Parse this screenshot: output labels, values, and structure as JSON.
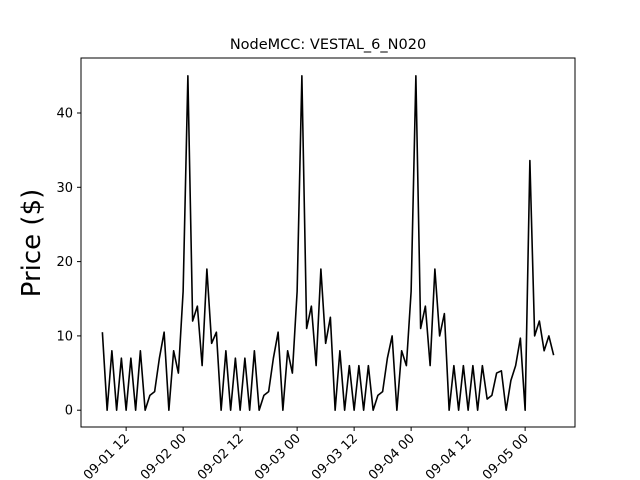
{
  "chart_data": {
    "type": "line",
    "title": "NodeMCC: VESTAL_6_N020",
    "y_label": "Price ($)",
    "color": "#000000",
    "x": [
      "09-01 07",
      "09-01 08",
      "09-01 09",
      "09-01 10",
      "09-01 11",
      "09-01 12",
      "09-01 13",
      "09-01 14",
      "09-01 15",
      "09-01 16",
      "09-01 17",
      "09-01 18",
      "09-01 19",
      "09-01 20",
      "09-01 21",
      "09-01 22",
      "09-01 23",
      "09-02 00",
      "09-02 01",
      "09-02 02",
      "09-02 03",
      "09-02 04",
      "09-02 05",
      "09-02 06",
      "09-02 07",
      "09-02 08",
      "09-02 09",
      "09-02 10",
      "09-02 11",
      "09-02 12",
      "09-02 13",
      "09-02 14",
      "09-02 15",
      "09-02 16",
      "09-02 17",
      "09-02 18",
      "09-02 19",
      "09-02 20",
      "09-02 21",
      "09-02 22",
      "09-02 23",
      "09-03 00",
      "09-03 01",
      "09-03 02",
      "09-03 03",
      "09-03 04",
      "09-03 05",
      "09-03 06",
      "09-03 07",
      "09-03 08",
      "09-03 09",
      "09-03 10",
      "09-03 11",
      "09-03 12",
      "09-03 13",
      "09-03 14",
      "09-03 15",
      "09-03 16",
      "09-03 17",
      "09-03 18",
      "09-03 19",
      "09-03 20",
      "09-03 21",
      "09-03 22",
      "09-03 23",
      "09-04 00",
      "09-04 01",
      "09-04 02",
      "09-04 03",
      "09-04 04",
      "09-04 05",
      "09-04 06",
      "09-04 07",
      "09-04 08",
      "09-04 09",
      "09-04 10",
      "09-04 11",
      "09-04 12",
      "09-04 13",
      "09-04 14",
      "09-04 15",
      "09-04 16",
      "09-04 17",
      "09-04 18",
      "09-04 19",
      "09-04 20",
      "09-04 21",
      "09-04 22",
      "09-04 23",
      "09-05 00",
      "09-05 01",
      "09-05 02",
      "09-05 03",
      "09-05 04",
      "09-05 05",
      "09-05 06"
    ],
    "values": [
      10.5,
      0,
      8,
      0,
      7,
      0,
      7,
      0,
      8,
      0,
      2,
      2.5,
      7,
      10.5,
      0,
      8,
      5,
      16,
      45,
      12,
      14,
      6,
      19,
      9,
      10.5,
      0,
      8,
      0,
      7,
      0,
      7,
      0,
      8,
      0,
      2,
      2.5,
      7,
      10.5,
      0,
      8,
      5,
      16,
      45,
      11,
      14,
      6,
      19,
      9,
      12.5,
      0,
      8,
      0,
      6,
      0,
      6,
      0,
      6,
      0,
      2,
      2.5,
      7,
      10,
      0,
      8,
      6,
      16,
      45,
      11,
      14,
      6,
      19,
      10,
      13,
      0,
      6,
      0,
      6,
      0,
      6,
      0,
      6,
      1.5,
      2,
      5,
      5.3,
      0,
      4,
      6,
      9.7,
      0,
      33.6,
      10,
      12,
      8,
      10,
      7.4
    ],
    "xlim": [
      "09-01 02:30",
      "09-05 10:30"
    ],
    "xticks": [
      "09-01 12",
      "09-02 00",
      "09-02 12",
      "09-03 00",
      "09-03 12",
      "09-04 00",
      "09-04 12",
      "09-05 00"
    ],
    "ylim": [
      -2.26,
      47.4
    ],
    "yticks": [
      0,
      10,
      20,
      30,
      40
    ]
  }
}
